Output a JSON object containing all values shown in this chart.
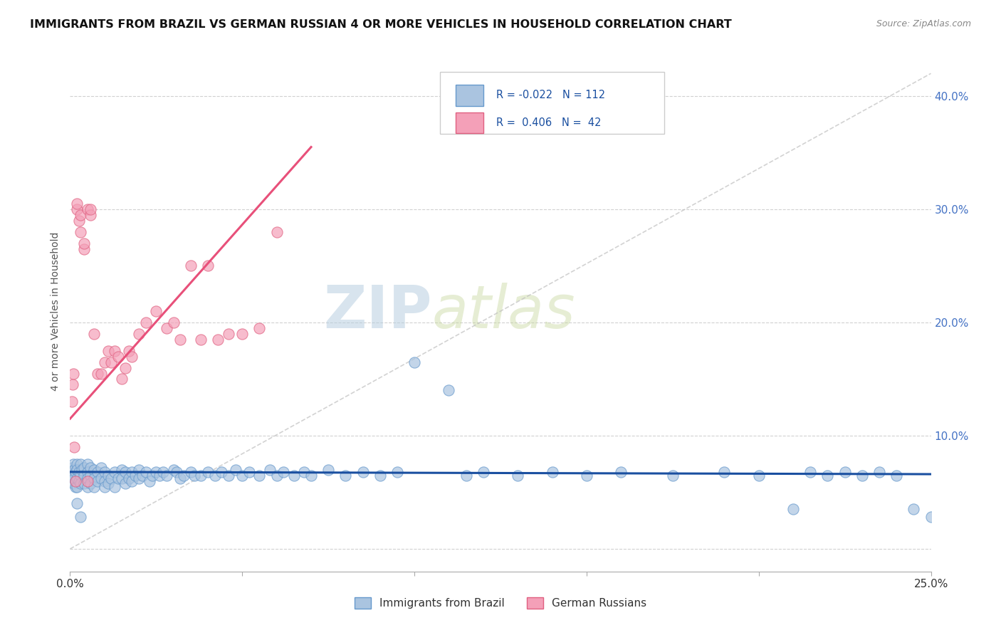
{
  "title": "IMMIGRANTS FROM BRAZIL VS GERMAN RUSSIAN 4 OR MORE VEHICLES IN HOUSEHOLD CORRELATION CHART",
  "source": "Source: ZipAtlas.com",
  "ylabel": "4 or more Vehicles in Household",
  "xlim": [
    0.0,
    0.25
  ],
  "ylim": [
    -0.02,
    0.44
  ],
  "brazil_color": "#aac4e0",
  "brazil_edge_color": "#6699cc",
  "german_color": "#f4a0b8",
  "german_edge_color": "#e06080",
  "brazil_line_color": "#1a4fa0",
  "german_line_color": "#e8507a",
  "diag_color": "#c0c0c0",
  "grid_color": "#cccccc",
  "background_color": "#ffffff",
  "watermark_text": "ZIPatlas",
  "watermark_color": "#d0dde8",
  "watermark_alpha": 0.6,
  "legend_label1": "R = -0.022",
  "legend_n1": "N = 112",
  "legend_label2": "R =  0.406",
  "legend_n2": "N =  42",
  "bottom_label1": "Immigrants from Brazil",
  "bottom_label2": "German Russians",
  "brazil_scatter_x": [
    0.0005,
    0.0008,
    0.001,
    0.001,
    0.001,
    0.0012,
    0.0012,
    0.0015,
    0.0015,
    0.0015,
    0.002,
    0.002,
    0.002,
    0.002,
    0.0025,
    0.0025,
    0.003,
    0.003,
    0.003,
    0.0035,
    0.004,
    0.004,
    0.004,
    0.005,
    0.005,
    0.005,
    0.005,
    0.006,
    0.006,
    0.006,
    0.007,
    0.007,
    0.007,
    0.008,
    0.008,
    0.009,
    0.009,
    0.01,
    0.01,
    0.01,
    0.011,
    0.011,
    0.012,
    0.013,
    0.013,
    0.014,
    0.015,
    0.015,
    0.016,
    0.016,
    0.017,
    0.018,
    0.018,
    0.019,
    0.02,
    0.02,
    0.021,
    0.022,
    0.023,
    0.024,
    0.025,
    0.026,
    0.027,
    0.028,
    0.03,
    0.031,
    0.032,
    0.033,
    0.035,
    0.036,
    0.038,
    0.04,
    0.042,
    0.044,
    0.046,
    0.048,
    0.05,
    0.052,
    0.055,
    0.058,
    0.06,
    0.062,
    0.065,
    0.068,
    0.07,
    0.075,
    0.08,
    0.085,
    0.09,
    0.095,
    0.1,
    0.11,
    0.115,
    0.12,
    0.13,
    0.14,
    0.15,
    0.16,
    0.175,
    0.19,
    0.2,
    0.21,
    0.215,
    0.22,
    0.225,
    0.23,
    0.235,
    0.24,
    0.245,
    0.25,
    0.002,
    0.003
  ],
  "brazil_scatter_y": [
    0.072,
    0.068,
    0.075,
    0.065,
    0.058,
    0.07,
    0.062,
    0.068,
    0.06,
    0.055,
    0.075,
    0.07,
    0.062,
    0.055,
    0.068,
    0.06,
    0.075,
    0.065,
    0.058,
    0.07,
    0.072,
    0.065,
    0.058,
    0.075,
    0.068,
    0.062,
    0.055,
    0.072,
    0.065,
    0.058,
    0.07,
    0.062,
    0.055,
    0.068,
    0.06,
    0.072,
    0.062,
    0.068,
    0.06,
    0.055,
    0.065,
    0.058,
    0.062,
    0.068,
    0.055,
    0.062,
    0.07,
    0.062,
    0.068,
    0.058,
    0.062,
    0.068,
    0.06,
    0.065,
    0.07,
    0.062,
    0.065,
    0.068,
    0.06,
    0.065,
    0.068,
    0.065,
    0.068,
    0.065,
    0.07,
    0.068,
    0.062,
    0.065,
    0.068,
    0.065,
    0.065,
    0.068,
    0.065,
    0.068,
    0.065,
    0.07,
    0.065,
    0.068,
    0.065,
    0.07,
    0.065,
    0.068,
    0.065,
    0.068,
    0.065,
    0.07,
    0.065,
    0.068,
    0.065,
    0.068,
    0.165,
    0.14,
    0.065,
    0.068,
    0.065,
    0.068,
    0.065,
    0.068,
    0.065,
    0.068,
    0.065,
    0.035,
    0.068,
    0.065,
    0.068,
    0.065,
    0.068,
    0.065,
    0.035,
    0.028,
    0.04,
    0.028
  ],
  "german_scatter_x": [
    0.0005,
    0.0008,
    0.001,
    0.0012,
    0.0015,
    0.002,
    0.002,
    0.0025,
    0.003,
    0.003,
    0.004,
    0.004,
    0.005,
    0.005,
    0.006,
    0.006,
    0.007,
    0.008,
    0.009,
    0.01,
    0.011,
    0.012,
    0.013,
    0.014,
    0.015,
    0.016,
    0.017,
    0.018,
    0.02,
    0.022,
    0.025,
    0.028,
    0.03,
    0.032,
    0.035,
    0.038,
    0.04,
    0.043,
    0.046,
    0.05,
    0.055,
    0.06
  ],
  "german_scatter_y": [
    0.13,
    0.145,
    0.155,
    0.09,
    0.06,
    0.3,
    0.305,
    0.29,
    0.28,
    0.295,
    0.265,
    0.27,
    0.3,
    0.06,
    0.295,
    0.3,
    0.19,
    0.155,
    0.155,
    0.165,
    0.175,
    0.165,
    0.175,
    0.17,
    0.15,
    0.16,
    0.175,
    0.17,
    0.19,
    0.2,
    0.21,
    0.195,
    0.2,
    0.185,
    0.25,
    0.185,
    0.25,
    0.185,
    0.19,
    0.19,
    0.195,
    0.28
  ],
  "brazil_trend_x": [
    0.0,
    0.25
  ],
  "brazil_trend_y": [
    0.068,
    0.066
  ],
  "german_trend_x": [
    0.0,
    0.07
  ],
  "german_trend_y": [
    0.115,
    0.355
  ]
}
